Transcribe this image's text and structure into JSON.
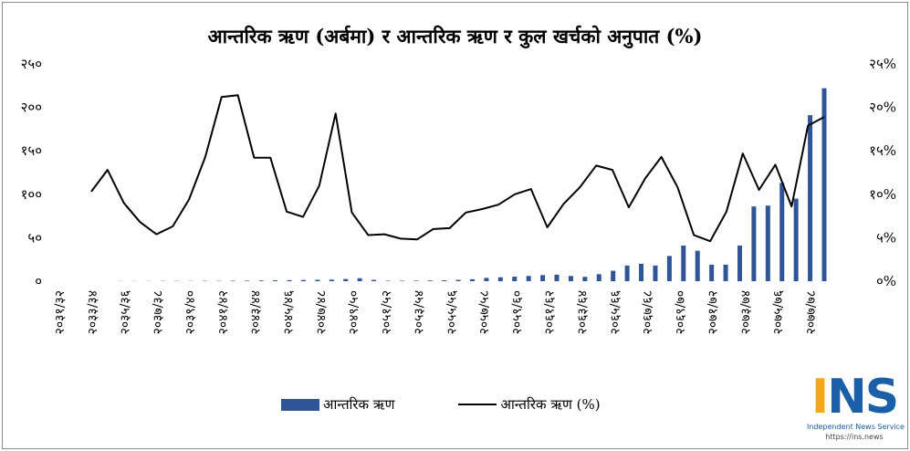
{
  "chart_data": {
    "type": "bar+line",
    "title": "आन्तरिक ऋण (अर्बमा) र आन्तरिक ऋण  र कुल खर्चको अनुपात (%)",
    "x_tick_labels": [
      "२०३१/३२",
      "२०३३/३४",
      "२०३५/३६",
      "२०३७/३८",
      "२०३९/४०",
      "२०४१/४२",
      "२०४३/४४",
      "२०४५/४६",
      "२०४७/४८",
      "२०४९/५०",
      "२०५१/५२",
      "२०५३/५४",
      "२०५५/५६",
      "२०५७/५८",
      "२०५९/६०",
      "२०६१/६२",
      "२०६३/६४",
      "२०६५/६६",
      "२०६७/६८",
      "२०६९/७०",
      "२०७१/७२",
      "२०७३/७४",
      "२०७५/७६",
      "२०७७/७८"
    ],
    "left_axis": {
      "ylim": [
        0,
        250
      ],
      "ticks": [
        "०",
        "५०",
        "१००",
        "१५०",
        "२००",
        "२५०"
      ]
    },
    "right_axis": {
      "ylim": [
        0,
        25
      ],
      "ticks": [
        "०%",
        "५%",
        "१०%",
        "१५%",
        "२०%",
        "२५%"
      ]
    },
    "grid": false,
    "legend_position": "bottom",
    "series": [
      {
        "name": "आन्तरिक ऋण",
        "type": "bar",
        "axis": "left",
        "color": "#2f5597",
        "values": [
          0.2,
          0.2,
          0.2,
          0.3,
          0.3,
          0.3,
          0.4,
          0.4,
          0.5,
          0.6,
          0.8,
          1,
          1.2,
          1.4,
          1.6,
          1.8,
          2.5,
          3.4,
          1.5,
          0.5,
          0.5,
          0.6,
          0.8,
          1,
          1.5,
          2.2,
          3.8,
          4.5,
          5.2,
          6,
          7,
          7.5,
          6,
          5,
          8,
          12,
          18,
          20,
          18,
          29,
          41,
          35,
          19,
          19,
          41,
          86,
          87,
          113,
          95,
          191,
          222
        ]
      },
      {
        "name": "आन्तरिक ऋण (%)",
        "type": "line",
        "axis": "right",
        "color": "#000000",
        "values": [
          10.3,
          12.8,
          9.0,
          6.8,
          5.4,
          6.3,
          9.4,
          14.3,
          21.2,
          21.4,
          14.2,
          14.2,
          8.0,
          7.4,
          11.0,
          19.3,
          7.9,
          5.3,
          5.4,
          4.9,
          4.8,
          6.0,
          6.1,
          7.9,
          8.3,
          8.8,
          10.0,
          10.6,
          6.2,
          8.9,
          10.8,
          13.3,
          12.8,
          8.5,
          11.8,
          14.3,
          10.8,
          5.3,
          4.6,
          8.0,
          14.7,
          10.5,
          13.4,
          8.6,
          17.9,
          18.9
        ]
      }
    ]
  },
  "legend": {
    "bar_label": "आन्तरिक ऋण",
    "line_label": "आन्तरिक ऋण (%)"
  },
  "logo": {
    "letters": "INS",
    "tagline": "Independent News Service",
    "url": "https://ins.news"
  }
}
